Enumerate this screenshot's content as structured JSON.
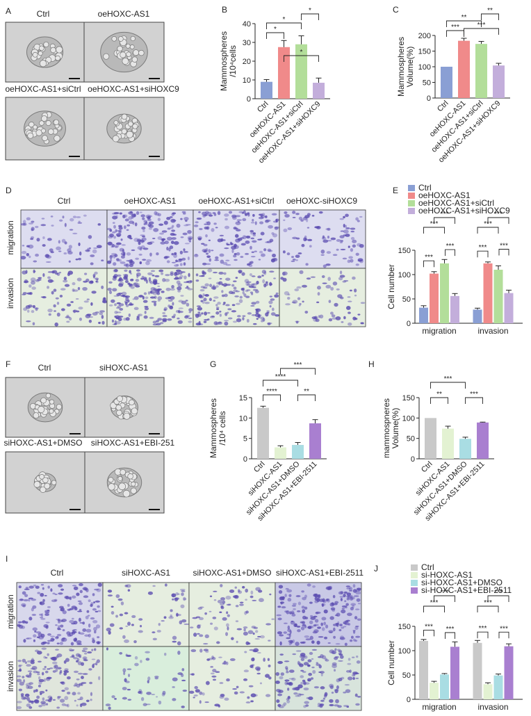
{
  "panel_letters": {
    "A": "A",
    "B": "B",
    "C": "C",
    "D": "D",
    "E": "E",
    "F": "F",
    "G": "G",
    "H": "H",
    "I": "I",
    "J": "J"
  },
  "panel_A": {
    "labels": [
      "Ctrl",
      "oeHOXC-AS1",
      "oeHOXC-AS1+siCtrl",
      "oeHOXC-AS1+siHOXC9"
    ]
  },
  "panel_D": {
    "columns": [
      "Ctrl",
      "oeHOXC-AS1",
      "oeHOXC-AS1+siCtrl",
      "oeHOXC-siHOXC9"
    ],
    "rows": [
      "migration",
      "invasion"
    ]
  },
  "panel_F": {
    "labels": [
      "Ctrl",
      "siHOXC-AS1",
      "siHOXC-AS1+DMSO",
      "siHOXC-AS1+EBI-251"
    ]
  },
  "panel_I": {
    "columns": [
      "Ctrl",
      "siHOXC-AS1",
      "siHOXC-AS1+DMSO",
      "siHOXC-AS1+EBI-2511"
    ],
    "rows": [
      "migration",
      "invasion"
    ]
  },
  "colors": {
    "blue": "#8a9fd4",
    "red": "#f08a8a",
    "green": "#b3de9a",
    "purple": "#c3aedb",
    "grey": "#c9c9c9",
    "palegreen": "#e3f2d2",
    "cyan": "#a9dde3",
    "violet": "#a97fd0",
    "migration_tint": "#ddddf0",
    "invasion_tint": "#e6eee0",
    "cell": "#5a4bb0"
  },
  "chart_data": [
    {
      "panel": "B",
      "type": "bar",
      "ylabel_line1": "Mammospheres",
      "ylabel_line2": "/10⁴cells",
      "ylim": [
        0,
        40
      ],
      "yticks": [
        0,
        10,
        20,
        30,
        40
      ],
      "categories": [
        "Ctrl",
        "oeHOXC-AS1",
        "oeHOXC-AS1+siCtrl",
        "oeHOXC-AS1+siHOXC9"
      ],
      "values": [
        9,
        27.5,
        29,
        8.5
      ],
      "errors": [
        1.2,
        3.5,
        4.5,
        2.5
      ],
      "annotations": [
        {
          "from": 0,
          "to": 1,
          "text": "*"
        },
        {
          "from": 0,
          "to": 2,
          "text": "*"
        },
        {
          "from": 1,
          "to": 3,
          "text": "*"
        },
        {
          "from": 2,
          "to": 3,
          "text": "*"
        }
      ]
    },
    {
      "panel": "C",
      "type": "bar",
      "ylabel_line1": "Mammospheres",
      "ylabel_line2": "Volume(%)",
      "ylim": [
        0,
        200
      ],
      "yticks": [
        0,
        50,
        100,
        150,
        200
      ],
      "categories": [
        "Ctrl",
        "oeHOXC-AS1",
        "oeHOXC-AS1+siCtrl",
        "oeHOXC-AS1+siHOXC9"
      ],
      "values": [
        100,
        183,
        173,
        104
      ],
      "errors": [
        0,
        8,
        8,
        7
      ],
      "annotations": [
        {
          "from": 0,
          "to": 1,
          "text": "***"
        },
        {
          "from": 0,
          "to": 2,
          "text": "**"
        },
        {
          "from": 1,
          "to": 3,
          "text": "***"
        },
        {
          "from": 2,
          "to": 3,
          "text": "**"
        }
      ]
    },
    {
      "panel": "E",
      "type": "bar",
      "ylabel": "Cell number",
      "ylim": [
        0,
        150
      ],
      "yticks": [
        0,
        50,
        100,
        150
      ],
      "categories": [
        "migration",
        "invasion"
      ],
      "series": [
        {
          "name": "Ctrl",
          "values": [
            32,
            28
          ],
          "errors": [
            4,
            3
          ]
        },
        {
          "name": "oeHOXC-AS1",
          "values": [
            102,
            123
          ],
          "errors": [
            4,
            3
          ]
        },
        {
          "name": "oeHOXC-AS1+siCtrl",
          "values": [
            123,
            110
          ],
          "errors": [
            8,
            8
          ]
        },
        {
          "name": "oeHOXC-AS1+siHOXC9",
          "values": [
            56,
            62
          ],
          "errors": [
            5,
            6
          ]
        }
      ],
      "annotations": [
        {
          "from": 0,
          "to": 1,
          "text": "***"
        },
        {
          "from": 1,
          "to": 3,
          "text": "***"
        },
        {
          "from": 0,
          "to": 2,
          "text": "***"
        },
        {
          "from": 1,
          "to": 3,
          "text": "***"
        }
      ]
    },
    {
      "panel": "G",
      "type": "bar",
      "ylabel_line1": "Mammospheres",
      "ylabel_line2": "/10⁴ cells",
      "ylim": [
        0,
        15
      ],
      "yticks": [
        0,
        5,
        10,
        15
      ],
      "categories": [
        "Ctrl",
        "siHOXC-AS1",
        "siHOXC-AS1+DMSO",
        "siHOXC-AS1+EBI-2511"
      ],
      "values": [
        12.5,
        2.8,
        3.4,
        8.7
      ],
      "errors": [
        0.4,
        0.4,
        0.6,
        0.9
      ],
      "annotations": [
        {
          "from": 0,
          "to": 1,
          "text": "****"
        },
        {
          "from": 0,
          "to": 2,
          "text": "****"
        },
        {
          "from": 1,
          "to": 3,
          "text": "***"
        },
        {
          "from": 2,
          "to": 3,
          "text": "**"
        }
      ]
    },
    {
      "panel": "H",
      "type": "bar",
      "ylabel_line1": "mammospneres",
      "ylabel_line2": "Volume(%)",
      "ylim": [
        0,
        150
      ],
      "yticks": [
        0,
        50,
        100,
        150
      ],
      "categories": [
        "Ctrl",
        "siHOXC-AS1",
        "siHOXC-AS1+DMSO",
        "siHOXC-AS1+EBI-2511"
      ],
      "values": [
        100,
        74,
        49,
        89
      ],
      "errors": [
        0,
        6,
        4,
        1
      ],
      "annotations": [
        {
          "from": 0,
          "to": 1,
          "text": "**"
        },
        {
          "from": 0,
          "to": 2,
          "text": "***"
        },
        {
          "from": 2,
          "to": 3,
          "text": "***"
        }
      ]
    },
    {
      "panel": "J",
      "type": "bar",
      "ylabel": "Cell number",
      "ylim": [
        0,
        150
      ],
      "yticks": [
        0,
        50,
        100,
        150
      ],
      "categories": [
        "migration",
        "invasion"
      ],
      "series": [
        {
          "name": "Ctrl",
          "values": [
            120,
            116
          ],
          "errors": [
            3,
            5
          ]
        },
        {
          "name": "si-HOXC-AS1",
          "values": [
            34,
            31
          ],
          "errors": [
            3,
            3
          ]
        },
        {
          "name": "si-HOXC-AS1+DMSO",
          "values": [
            51,
            49
          ],
          "errors": [
            2,
            3
          ]
        },
        {
          "name": "si-HOXC-AS1+EBI-2511",
          "values": [
            108,
            109
          ],
          "errors": [
            10,
            5
          ]
        }
      ],
      "annotations": [
        {
          "from": 0,
          "to": 1,
          "text": "***"
        },
        {
          "from": 1,
          "to": 3,
          "text": "***"
        },
        {
          "from": 0,
          "to": 2,
          "text": "***"
        },
        {
          "from": 1,
          "to": 3,
          "text": "***"
        }
      ]
    }
  ]
}
